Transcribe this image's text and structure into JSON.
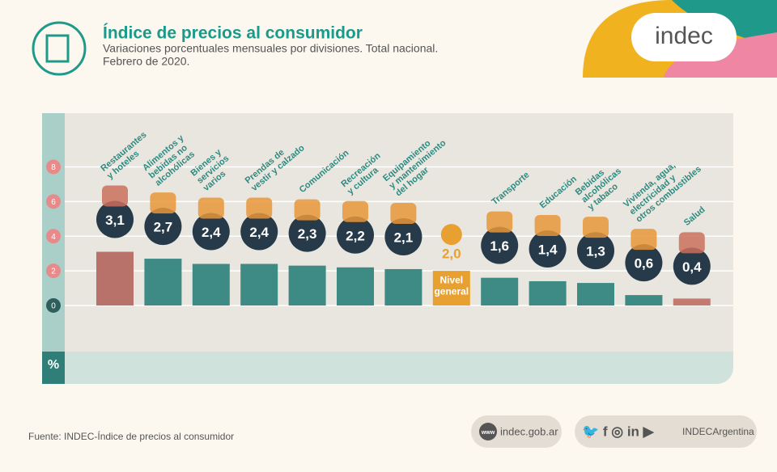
{
  "header": {
    "logo": "indec"
  },
  "chart_data": {
    "type": "bar",
    "title": "Índice de precios al consumidor",
    "subtitle": [
      "Variaciones porcentuales mensuales por divisiones. Total nacional.",
      "Febrero de 2020."
    ],
    "categories": [
      [
        "Restaurantes",
        "y hoteles"
      ],
      [
        "Alimentos y",
        "bebidas no",
        "alcohólicas"
      ],
      [
        "Bienes y",
        "servicios",
        "varios"
      ],
      [
        "Prendas de",
        "vestir y calzado"
      ],
      [
        "Comunicación"
      ],
      [
        "Recreación",
        "y cultura"
      ],
      [
        "Equipamiento",
        "y mantenimiento",
        "del hogar"
      ],
      [
        "Nivel",
        "general"
      ],
      [
        "Transporte"
      ],
      [
        "Educación"
      ],
      [
        "Bebidas",
        "alcohólicas",
        "y tabaco"
      ],
      [
        "Vivienda, agua,",
        "electricidad y",
        "otros combustibles"
      ],
      [
        "Salud"
      ]
    ],
    "values": [
      3.1,
      2.7,
      2.4,
      2.4,
      2.3,
      2.2,
      2.1,
      2.0,
      1.6,
      1.4,
      1.3,
      0.6,
      0.4
    ],
    "value_labels": [
      "3,1",
      "2,7",
      "2,4",
      "2,4",
      "2,3",
      "2,2",
      "2,1",
      "2,0",
      "1,6",
      "1,4",
      "1,3",
      "0,6",
      "0,4"
    ],
    "colors": [
      "#b8726a",
      "#3e8a84",
      "#3e8a84",
      "#3e8a84",
      "#3e8a84",
      "#3e8a84",
      "#3e8a84",
      "#e8a030",
      "#3e8a84",
      "#3e8a84",
      "#3e8a84",
      "#3e8a84",
      "#c57a70"
    ],
    "ylim": [
      -2.66,
      11.1
    ],
    "yticks": [
      0,
      2,
      4,
      6,
      8
    ],
    "grid": true,
    "unit": "%"
  },
  "footer": {
    "source": "Fuente: INDEC-Índice de precios al consumidor",
    "www": "www",
    "site": "indec.gob.ar",
    "social": "INDECArgentina"
  }
}
